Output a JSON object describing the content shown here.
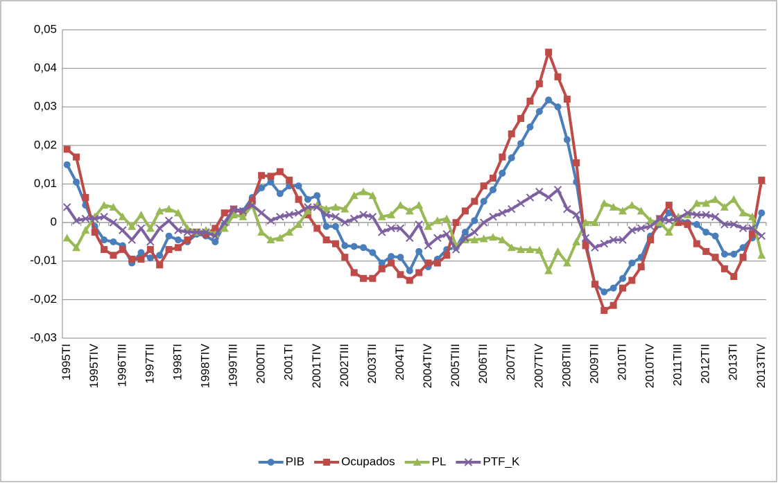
{
  "chart_data": {
    "type": "line",
    "categories": [
      "1995TI",
      null,
      null,
      "1995TIV",
      null,
      null,
      "1996TIII",
      null,
      null,
      "1997TII",
      null,
      null,
      "1998TI",
      null,
      null,
      "1998TIV",
      null,
      null,
      "1999TIII",
      null,
      null,
      "2000TII",
      null,
      null,
      "2001TI",
      null,
      null,
      "2001TIV",
      null,
      null,
      "2002TIII",
      null,
      null,
      "2003TII",
      null,
      null,
      "2004TI",
      null,
      null,
      "2004TIV",
      null,
      null,
      "2005TIII",
      null,
      null,
      "2006TII",
      null,
      null,
      "2007TI",
      null,
      null,
      "2007TIV",
      null,
      null,
      "2008TIII",
      null,
      null,
      "2009TII",
      null,
      null,
      "2010TI",
      null,
      null,
      "2010TIV",
      null,
      null,
      "2011TIII",
      null,
      null,
      "2012TII",
      null,
      null,
      "2013TI",
      null,
      null,
      "2013TIV"
    ],
    "series": [
      {
        "name": "PIB",
        "color": "#4a7ebb",
        "marker": "circle",
        "values": [
          0.015,
          0.0105,
          0.0045,
          -0.001,
          -0.0045,
          -0.005,
          -0.006,
          -0.0105,
          -0.0078,
          -0.0092,
          -0.0085,
          -0.0035,
          -0.0045,
          -0.005,
          -0.003,
          -0.0035,
          -0.005,
          -0.0005,
          0.003,
          0.003,
          0.0065,
          0.009,
          0.0105,
          0.0075,
          0.0095,
          0.0095,
          0.006,
          0.007,
          -0.001,
          -0.001,
          -0.006,
          -0.0062,
          -0.0065,
          -0.0078,
          -0.0105,
          -0.0088,
          -0.009,
          -0.0125,
          -0.0075,
          -0.0115,
          -0.0095,
          -0.007,
          -0.0065,
          -0.0025,
          0.0005,
          0.0055,
          0.0085,
          0.0128,
          0.0168,
          0.0205,
          0.0248,
          0.0288,
          0.0318,
          0.03,
          0.0215,
          0.0105,
          -0.005,
          -0.016,
          -0.018,
          -0.017,
          -0.0145,
          -0.0105,
          -0.009,
          -0.0035,
          -0.0005,
          0.0025,
          0.001,
          0.0,
          -0.0005,
          -0.0025,
          -0.0035,
          -0.0082,
          -0.0082,
          -0.0065,
          -0.004,
          0.0025
        ]
      },
      {
        "name": "Ocupados",
        "color": "#be4b48",
        "marker": "square",
        "values": [
          0.019,
          0.017,
          0.0065,
          -0.0025,
          -0.007,
          -0.0085,
          -0.007,
          -0.0095,
          -0.0095,
          -0.007,
          -0.011,
          -0.007,
          -0.0065,
          -0.0045,
          -0.0025,
          -0.003,
          -0.0015,
          0.0025,
          0.0035,
          0.0025,
          0.0055,
          0.0122,
          0.012,
          0.0132,
          0.011,
          0.006,
          0.002,
          -0.0015,
          -0.0045,
          -0.0055,
          -0.009,
          -0.013,
          -0.0145,
          -0.0145,
          -0.012,
          -0.0105,
          -0.0135,
          -0.015,
          -0.013,
          -0.0105,
          -0.0105,
          -0.0085,
          0.0,
          0.003,
          0.0055,
          0.0095,
          0.0115,
          0.017,
          0.023,
          0.027,
          0.0315,
          0.036,
          0.0442,
          0.0378,
          0.032,
          0.0155,
          -0.006,
          -0.016,
          -0.0228,
          -0.0215,
          -0.017,
          -0.015,
          -0.0115,
          -0.0045,
          0.001,
          0.0045,
          0.0,
          -0.0005,
          -0.0055,
          -0.0075,
          -0.009,
          -0.012,
          -0.014,
          -0.009,
          -0.003,
          0.011
        ]
      },
      {
        "name": "PL",
        "color": "#98b954",
        "marker": "triangle",
        "values": [
          -0.004,
          -0.0065,
          -0.002,
          0.0015,
          0.0045,
          0.004,
          0.0015,
          -0.001,
          0.002,
          -0.0015,
          0.003,
          0.0035,
          0.0025,
          -0.0015,
          -0.0025,
          -0.002,
          -0.003,
          -0.0015,
          0.002,
          0.0015,
          0.0045,
          -0.0025,
          -0.0045,
          -0.004,
          -0.0025,
          -0.0005,
          0.003,
          0.0045,
          0.0035,
          0.004,
          0.0035,
          0.007,
          0.008,
          0.007,
          0.0015,
          0.002,
          0.0045,
          0.003,
          0.0045,
          -0.001,
          0.0005,
          0.001,
          -0.006,
          -0.0045,
          -0.0045,
          -0.0042,
          -0.0038,
          -0.0045,
          -0.0065,
          -0.007,
          -0.007,
          -0.0072,
          -0.0125,
          -0.0075,
          -0.0105,
          -0.005,
          0.0,
          0.0,
          0.005,
          0.004,
          0.003,
          0.0045,
          0.003,
          0.0005,
          0.0,
          -0.0025,
          0.0015,
          0.002,
          0.005,
          0.005,
          0.006,
          0.004,
          0.006,
          0.0025,
          0.0015,
          -0.0085
        ]
      },
      {
        "name": "PTF_K",
        "color": "#7d60a0",
        "marker": "x",
        "values": [
          0.004,
          0.0005,
          0.001,
          0.001,
          0.0015,
          0.0,
          -0.002,
          -0.0045,
          -0.0015,
          -0.005,
          -0.0015,
          0.0005,
          -0.002,
          -0.0025,
          -0.0025,
          -0.0025,
          -0.0035,
          0.0,
          0.0035,
          0.003,
          0.0045,
          0.0025,
          0.0005,
          0.0015,
          0.002,
          0.0025,
          0.004,
          0.004,
          0.002,
          0.0015,
          0.0,
          0.001,
          0.002,
          0.0015,
          -0.0025,
          -0.0015,
          -0.0015,
          -0.004,
          -0.0005,
          -0.006,
          -0.004,
          -0.003,
          -0.007,
          -0.004,
          -0.0025,
          0.0,
          0.0015,
          0.0025,
          0.0035,
          0.005,
          0.0065,
          0.008,
          0.0065,
          0.0085,
          0.0035,
          0.002,
          -0.004,
          -0.0065,
          -0.0055,
          -0.0045,
          -0.0045,
          -0.002,
          -0.0015,
          -0.001,
          0.001,
          0.0005,
          0.001,
          0.0025,
          0.002,
          0.002,
          0.0015,
          -0.0005,
          -0.0005,
          -0.0015,
          -0.0015,
          -0.0035
        ]
      }
    ],
    "ylim": [
      -0.03,
      0.05
    ],
    "yticks": [
      {
        "value": -0.03,
        "label": "-0,03"
      },
      {
        "value": -0.02,
        "label": "-0,02"
      },
      {
        "value": -0.01,
        "label": "-0,01"
      },
      0,
      {
        "value": 0.01,
        "label": "0,01"
      },
      {
        "value": 0.02,
        "label": "0,02"
      },
      {
        "value": 0.03,
        "label": "0,03"
      },
      {
        "value": 0.04,
        "label": "0,04"
      },
      {
        "value": 0.05,
        "label": "0,05"
      }
    ],
    "grid": true,
    "legend": "bottom"
  }
}
